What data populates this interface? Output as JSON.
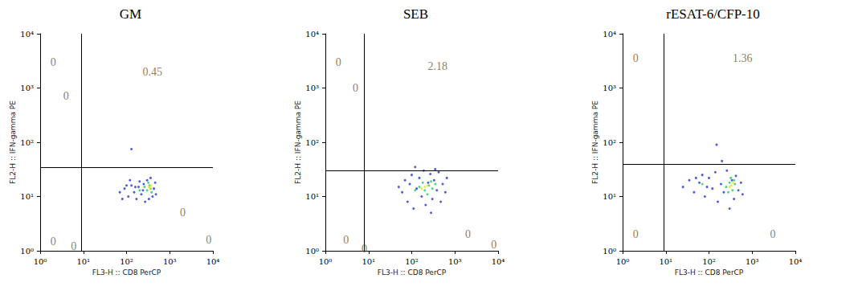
{
  "chart_data": [
    {
      "type": "scatter",
      "title": "GM",
      "xlabel": "FL3-H :: CD8 PerCP",
      "ylabel": "FL2-H :: IFN-gamma PE",
      "log": true,
      "xlim": [
        1,
        10000
      ],
      "ylim": [
        1,
        10000
      ],
      "xticks": [
        {
          "value": 1,
          "label": "10⁰"
        },
        {
          "value": 10,
          "label": "10¹"
        },
        {
          "value": 100,
          "label": "10²"
        },
        {
          "value": 1000,
          "label": "10³"
        },
        {
          "value": 10000,
          "label": "10⁴"
        }
      ],
      "yticks": [
        {
          "value": 1,
          "label": "10⁰"
        },
        {
          "value": 10,
          "label": "10¹"
        },
        {
          "value": 100,
          "label": "10²"
        },
        {
          "value": 1000,
          "label": "10³"
        },
        {
          "value": 10000,
          "label": "10⁴"
        }
      ],
      "gates": {
        "x": 9,
        "y": 35
      },
      "annotations": [
        {
          "text": "0",
          "x": 2,
          "y": 3000
        },
        {
          "text": "0",
          "x": 4,
          "y": 700
        },
        {
          "text": "0.45",
          "x": 400,
          "y": 2000
        },
        {
          "text": "0",
          "x": 2,
          "y": 1.5
        },
        {
          "text": "0",
          "x": 2000,
          "y": 5
        },
        {
          "text": "0",
          "x": 8000,
          "y": 1.6
        },
        {
          "text": "0",
          "x": 6,
          "y": 1.2
        }
      ],
      "series": [
        {
          "color": "#2233dd",
          "values": [
            [
              70,
              12
            ],
            [
              90,
              14
            ],
            [
              110,
              10
            ],
            [
              130,
              16
            ],
            [
              150,
              12
            ],
            [
              170,
              9
            ],
            [
              190,
              15
            ],
            [
              220,
              11
            ],
            [
              250,
              17
            ],
            [
              270,
              8
            ],
            [
              300,
              20
            ],
            [
              330,
              9
            ],
            [
              360,
              22
            ],
            [
              400,
              10
            ],
            [
              430,
              14
            ],
            [
              460,
              18
            ],
            [
              120,
              20
            ],
            [
              200,
              19
            ],
            [
              130,
              75
            ],
            [
              80,
              9
            ],
            [
              160,
              15
            ],
            [
              240,
              13
            ],
            [
              480,
              11
            ],
            [
              100,
              16
            ]
          ]
        },
        {
          "color": "#22cc66",
          "values": [
            [
              300,
              13
            ],
            [
              340,
              16
            ],
            [
              380,
              12
            ],
            [
              320,
              18
            ],
            [
              360,
              14
            ],
            [
              200,
              13
            ],
            [
              260,
              15
            ]
          ]
        },
        {
          "color": "#f0e020",
          "values": [
            [
              350,
              14
            ],
            [
              370,
              16
            ],
            [
              330,
              15
            ]
          ]
        }
      ]
    },
    {
      "type": "scatter",
      "title": "SEB",
      "xlabel": "FL3-H :: CD8 PerCP",
      "ylabel": "FL2-H :: IFN-gamma PE",
      "log": true,
      "xlim": [
        1,
        10000
      ],
      "ylim": [
        1,
        10000
      ],
      "xticks": [
        {
          "value": 1,
          "label": "10⁰"
        },
        {
          "value": 10,
          "label": "10¹"
        },
        {
          "value": 100,
          "label": "10²"
        },
        {
          "value": 1000,
          "label": "10³"
        },
        {
          "value": 10000,
          "label": "10⁴"
        }
      ],
      "yticks": [
        {
          "value": 1,
          "label": "10⁰"
        },
        {
          "value": 10,
          "label": "10¹"
        },
        {
          "value": 100,
          "label": "10²"
        },
        {
          "value": 1000,
          "label": "10³"
        },
        {
          "value": 10000,
          "label": "10⁴"
        }
      ],
      "gates": {
        "x": 8,
        "y": 30
      },
      "annotations": [
        {
          "text": "0",
          "x": 2,
          "y": 3000
        },
        {
          "text": "0",
          "x": 5,
          "y": 1000
        },
        {
          "text": "2.18",
          "x": 400,
          "y": 2500
        },
        {
          "text": "0",
          "x": 3,
          "y": 1.6
        },
        {
          "text": "0",
          "x": 2000,
          "y": 2
        },
        {
          "text": "0",
          "x": 8000,
          "y": 1.3
        },
        {
          "text": "0",
          "x": 8,
          "y": 1.1
        }
      ],
      "series": [
        {
          "color": "#2233dd",
          "values": [
            [
              50,
              15
            ],
            [
              60,
              12
            ],
            [
              70,
              20
            ],
            [
              80,
              8
            ],
            [
              90,
              17
            ],
            [
              100,
              25
            ],
            [
              110,
              6
            ],
            [
              130,
              14
            ],
            [
              150,
              22
            ],
            [
              170,
              10
            ],
            [
              190,
              30
            ],
            [
              210,
              7
            ],
            [
              240,
              18
            ],
            [
              270,
              26
            ],
            [
              300,
              9
            ],
            [
              330,
              20
            ],
            [
              380,
              13
            ],
            [
              420,
              28
            ],
            [
              470,
              8
            ],
            [
              520,
              17
            ],
            [
              600,
              12
            ],
            [
              650,
              22
            ],
            [
              120,
              35
            ],
            [
              280,
              5
            ],
            [
              350,
              32
            ]
          ]
        },
        {
          "color": "#22cc66",
          "values": [
            [
              150,
              15
            ],
            [
              200,
              13
            ],
            [
              250,
              16
            ],
            [
              300,
              14
            ],
            [
              180,
              18
            ],
            [
              230,
              11
            ],
            [
              350,
              17
            ],
            [
              120,
              13
            ],
            [
              280,
              19
            ]
          ]
        },
        {
          "color": "#f0e020",
          "values": [
            [
              200,
              15
            ],
            [
              230,
              16
            ],
            [
              170,
              14
            ]
          ]
        }
      ]
    },
    {
      "type": "scatter",
      "title": "rESAT-6/CFP-10",
      "xlabel": "FL3-H :: CD8 PerCP",
      "ylabel": "FL2-H :: IFN-gamma PE",
      "log": true,
      "xlim": [
        1,
        10000
      ],
      "ylim": [
        1,
        10000
      ],
      "xticks": [
        {
          "value": 1,
          "label": "10⁰"
        },
        {
          "value": 10,
          "label": "10¹"
        },
        {
          "value": 100,
          "label": "10²"
        },
        {
          "value": 1000,
          "label": "10³"
        },
        {
          "value": 10000,
          "label": "10⁴"
        }
      ],
      "yticks": [
        {
          "value": 1,
          "label": "10⁰"
        },
        {
          "value": 10,
          "label": "10¹"
        },
        {
          "value": 100,
          "label": "10²"
        },
        {
          "value": 1000,
          "label": "10³"
        },
        {
          "value": 10000,
          "label": "10⁴"
        }
      ],
      "gates": {
        "x": 9,
        "y": 40
      },
      "annotations": [
        {
          "text": "0",
          "x": 2,
          "y": 3500
        },
        {
          "text": "1.36",
          "x": 600,
          "y": 3500
        },
        {
          "text": "0",
          "x": 2,
          "y": 2
        },
        {
          "text": "0",
          "x": 3000,
          "y": 2
        }
      ],
      "series": [
        {
          "color": "#2233dd",
          "values": [
            [
              25,
              15
            ],
            [
              35,
              20
            ],
            [
              45,
              12
            ],
            [
              60,
              18
            ],
            [
              70,
              25
            ],
            [
              80,
              10
            ],
            [
              100,
              22
            ],
            [
              120,
              14
            ],
            [
              140,
              28
            ],
            [
              160,
              8
            ],
            [
              190,
              17
            ],
            [
              220,
              12
            ],
            [
              260,
              30
            ],
            [
              300,
              6
            ],
            [
              340,
              20
            ],
            [
              380,
              9
            ],
            [
              420,
              24
            ],
            [
              480,
              13
            ],
            [
              550,
              18
            ],
            [
              600,
              11
            ],
            [
              200,
              45
            ],
            [
              150,
              90
            ],
            [
              90,
              15
            ],
            [
              50,
              22
            ]
          ]
        },
        {
          "color": "#22cc66",
          "values": [
            [
              250,
              15
            ],
            [
              300,
              18
            ],
            [
              350,
              13
            ],
            [
              400,
              17
            ],
            [
              320,
              22
            ],
            [
              280,
              12
            ],
            [
              380,
              20
            ],
            [
              70,
              17
            ]
          ]
        },
        {
          "color": "#f0e020",
          "values": [
            [
              330,
              16
            ],
            [
              360,
              18
            ],
            [
              300,
              15
            ]
          ]
        }
      ]
    }
  ]
}
